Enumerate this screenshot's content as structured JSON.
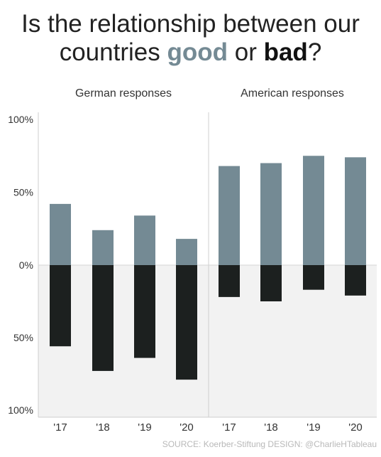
{
  "title": {
    "part1": "Is the relationship between our",
    "part2": "countries ",
    "good": "good",
    "part3": " or ",
    "bad": "bad",
    "part4": "?"
  },
  "source": "SOURCE: Koerber-Stiftung DESIGN: @CharlieHTableau",
  "colors": {
    "good": "#748a94",
    "bad": "#1c201f",
    "negative_area_bg": "#f2f2f2",
    "divider": "#cfcfcf",
    "text": "#222222"
  },
  "chart_data": {
    "type": "bar",
    "y_tick_labels": [
      "100%",
      "50%",
      "0%",
      "50%",
      "100%"
    ],
    "ylim": [
      -100,
      100
    ],
    "grid": false,
    "legend": "none",
    "categories": [
      "'17",
      "'18",
      "'19",
      "'20"
    ],
    "panels": [
      {
        "name": "German responses",
        "series": [
          {
            "name": "good",
            "values": [
              42,
              24,
              34,
              18
            ]
          },
          {
            "name": "bad",
            "values": [
              -56,
              -73,
              -64,
              -79
            ]
          }
        ]
      },
      {
        "name": "American responses",
        "series": [
          {
            "name": "good",
            "values": [
              68,
              70,
              75,
              74
            ]
          },
          {
            "name": "bad",
            "values": [
              -22,
              -25,
              -17,
              -21
            ]
          }
        ]
      }
    ]
  }
}
